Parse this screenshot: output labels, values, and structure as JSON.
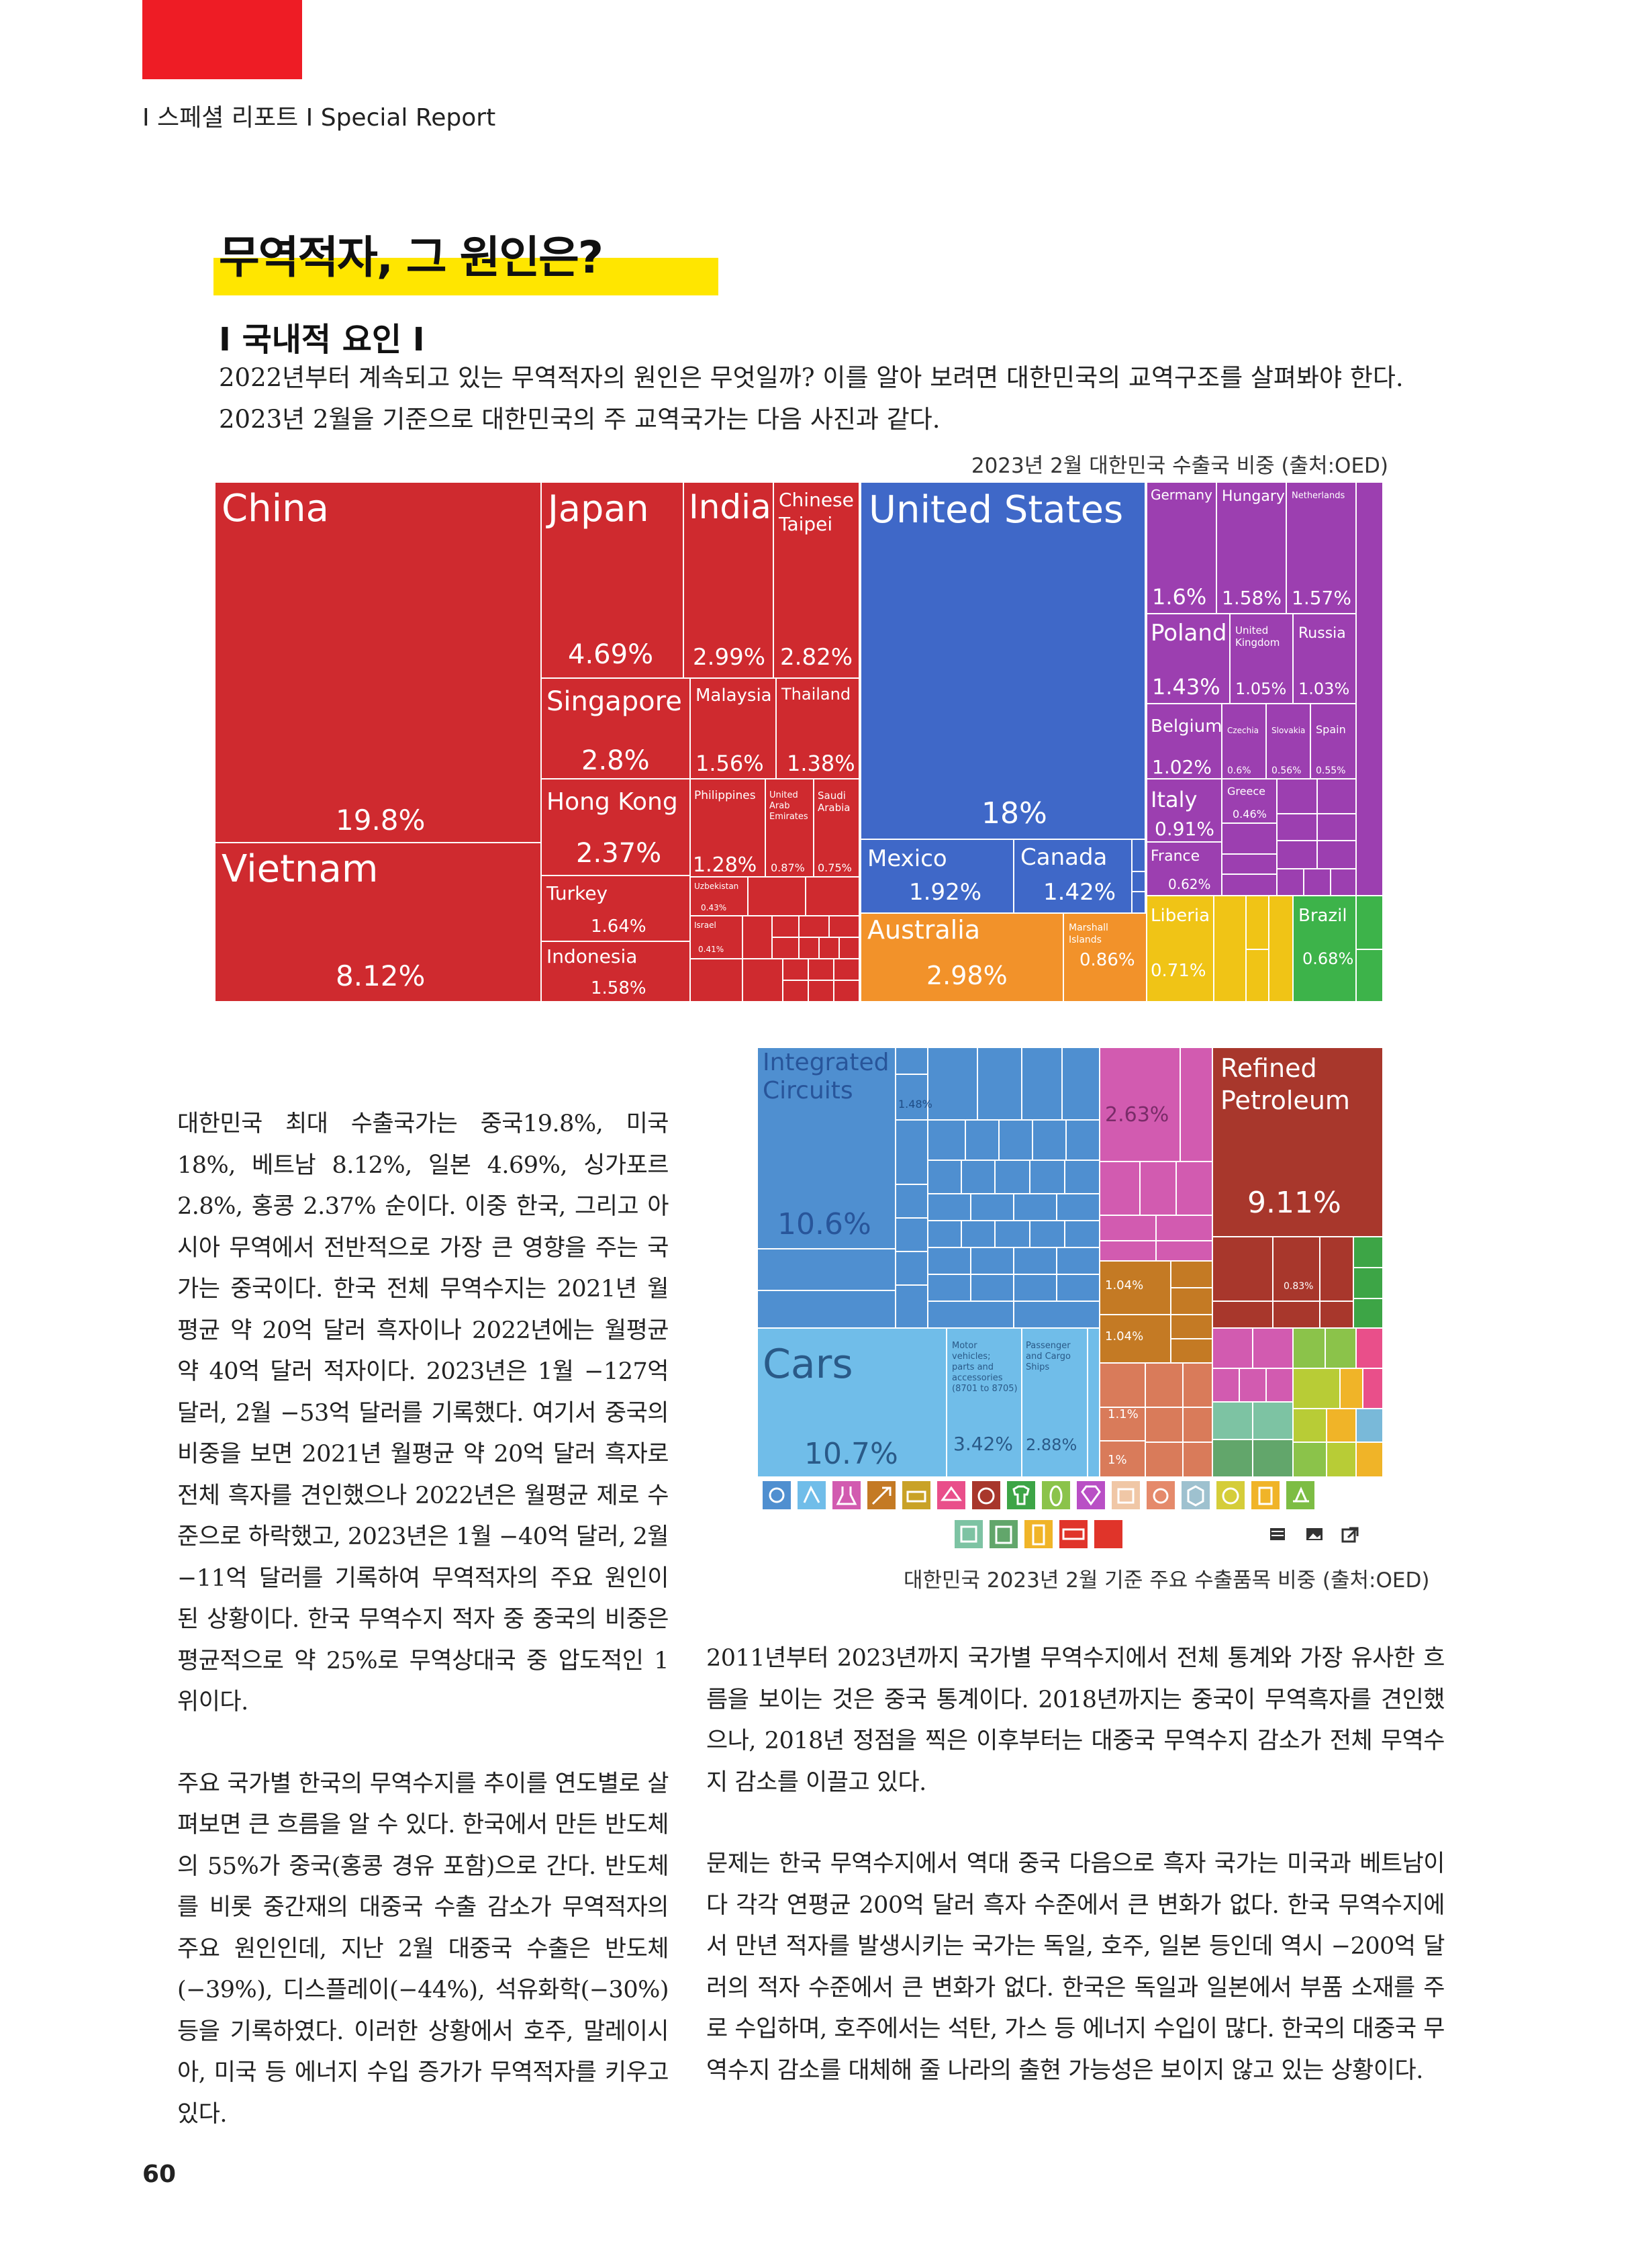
{
  "header": {
    "tag": "Ⅰ 스페셜 리포트 Ⅰ Special Report"
  },
  "title": "무역적자, 그 원인은?",
  "subhead": "Ⅰ 국내적 요인 Ⅰ",
  "intro": [
    "2022년부터 계속되고 있는 무역적자의 원인은 무엇일까? 이를 알아 보려면 대한민국의 교역구조를 살펴봐야 한다.",
    "2023년 2월을 기준으로 대한민국의 주 교역국가는 다음 사진과 같다."
  ],
  "figure1": {
    "caption": "2023년 2월 대한민국 수출국 비중 (출처:OED)",
    "chart_data": {
      "type": "treemap",
      "unit": "%",
      "tiles": [
        {
          "label": "China",
          "value": "19.8%"
        },
        {
          "label": "Vietnam",
          "value": "8.12%"
        },
        {
          "label": "Japan",
          "value": "4.69%"
        },
        {
          "label": "India",
          "value": "2.99%"
        },
        {
          "label": "Chinese Taipei",
          "value": "2.82%"
        },
        {
          "label": "Singapore",
          "value": "2.8%"
        },
        {
          "label": "Malaysia",
          "value": "1.56%"
        },
        {
          "label": "Thailand",
          "value": "1.38%"
        },
        {
          "label": "Hong Kong",
          "value": "2.37%"
        },
        {
          "label": "Philippines",
          "value": "1.28%"
        },
        {
          "label": "United Arab Emirates",
          "value": "0.87%"
        },
        {
          "label": "Saudi Arabia",
          "value": "0.75%"
        },
        {
          "label": "Turkey",
          "value": "1.64%"
        },
        {
          "label": "Uzbekistan",
          "value": "0.43%"
        },
        {
          "label": "Indonesia",
          "value": "1.58%"
        },
        {
          "label": "Israel",
          "value": "0.41%"
        },
        {
          "label": "United States",
          "value": "18%"
        },
        {
          "label": "Mexico",
          "value": "1.92%"
        },
        {
          "label": "Canada",
          "value": "1.42%"
        },
        {
          "label": "Australia",
          "value": "2.98%"
        },
        {
          "label": "Marshall Islands",
          "value": "0.86%"
        },
        {
          "label": "Germany",
          "value": "1.6%"
        },
        {
          "label": "Hungary",
          "value": "1.58%"
        },
        {
          "label": "Netherlands",
          "value": "1.57%"
        },
        {
          "label": "Poland",
          "value": "1.43%"
        },
        {
          "label": "United Kingdom",
          "value": "1.05%"
        },
        {
          "label": "Russia",
          "value": "1.03%"
        },
        {
          "label": "Belgium",
          "value": "1.02%"
        },
        {
          "label": "Czechia",
          "value": "0.6%"
        },
        {
          "label": "Slovakia",
          "value": "0.56%"
        },
        {
          "label": "Spain",
          "value": "0.55%"
        },
        {
          "label": "Italy",
          "value": "0.91%"
        },
        {
          "label": "Greece",
          "value": "0.46%"
        },
        {
          "label": "France",
          "value": "0.62%"
        },
        {
          "label": "Liberia",
          "value": "0.71%"
        },
        {
          "label": "Brazil",
          "value": "0.68%"
        }
      ]
    }
  },
  "figure2": {
    "caption": "대한민국 2023년 2월 기준 주요 수출품목 비중 (출처:OED)",
    "chart_data": {
      "type": "treemap",
      "unit": "%",
      "tiles": [
        {
          "label": "Integrated Circuits",
          "value": "10.6%"
        },
        {
          "label": "Cars",
          "value": "10.7%"
        },
        {
          "label": "Refined Petroleum",
          "value": "9.11%"
        },
        {
          "label": "Motor vehicles; parts and accessories (8701 to 8705)",
          "value": "3.42%"
        },
        {
          "label": "Passenger and Cargo Ships",
          "value": "2.88%"
        }
      ],
      "minor_values": [
        "1.48%",
        "2.63%",
        "1.04%",
        "1.04%",
        "1.1%",
        "0.83%",
        "1%"
      ]
    }
  },
  "left_column": [
    "대한민국 최대 수출국가는 중국19.8%, 미국 18%, 베트남 8.12%, 일본 4.69%, 싱가포르 2.8%, 홍콩 2.37% 순이다. 이중 한국, 그리고 아시아 무역에서 전반적으로 가장 큰 영향을 주는 국가는 중국이다. 한국 전체 무역수지는 2021년 월평균 약 20억 달러 흑자이나 2022년에는 월평균 약 40억 달러 적자이다. 2023년은 1월 −127억 달러, 2월 −53억 달러를 기록했다. 여기서 중국의 비중을 보면 2021년 월평균 약 20억 달러 흑자로 전체 흑자를 견인했으나 2022년은 월평균 제로 수준으로 하락했고, 2023년은 1월 −40억 달러, 2월 −11억 달러를 기록하여 무역적자의 주요 원인이 된 상황이다. 한국 무역수지 적자 중 중국의 비중은 평균적으로 약 25%로 무역상대국 중 압도적인 1위이다.",
    "주요 국가별 한국의 무역수지를 추이를 연도별로 살펴보면 큰 흐름을 알 수 있다. 한국에서 만든 반도체의 55%가 중국(홍콩 경유 포함)으로 간다. 반도체를 비롯 중간재의 대중국 수출 감소가 무역적자의 주요 원인인데, 지난 2월 대중국 수출은 반도체(−39%), 디스플레이(−44%), 석유화학(−30%) 등을 기록하였다. 이러한 상황에서 호주, 말레이시아, 미국 등 에너지 수입 증가가 무역적자를 키우고 있다."
  ],
  "right_column": [
    "2011년부터 2023년까지 국가별 무역수지에서 전체 통계와 가장 유사한 흐름을 보이는 것은 중국 통계이다. 2018년까지는 중국이 무역흑자를 견인했으나, 2018년 정점을 찍은 이후부터는 대중국 무역수지 감소가 전체 무역수지 감소를 이끌고 있다.",
    "문제는 한국 무역수지에서 역대 중국 다음으로 흑자 국가는 미국과 베트남이다 각각 연평균 200억 달러 흑자 수준에서 큰 변화가 없다. 한국 무역수지에서 만년 적자를 발생시키는 국가는 독일, 호주, 일본 등인데 역시 −200억 달러의 적자 수준에서 큰 변화가 없다. 한국은 독일과 일본에서 부품 소재를 주로 수입하며, 호주에서는 석탄, 가스 등 에너지 수입이 많다. 한국의 대중국 무역수지 감소를 대체해 줄 나라의 출현 가능성은 보이지 않고 있는 상황이다."
  ],
  "page_number": "60",
  "colors": {
    "accent_red": "#ee1c25",
    "highlight_yellow": "#ffe600",
    "asia_red": "#cf2a2f",
    "americas_blue": "#3f68c8",
    "europe_purple": "#9c3fb0",
    "oceania_orange": "#f2922a",
    "africa_yellow": "#f0c416",
    "south_america_green": "#3db34a",
    "electronics_blue": "#4f8fd0",
    "vehicles_cyan": "#70bde9",
    "mineral_brown": "#a8372c",
    "metals_orange": "#c47a24",
    "chemicals_pink": "#d25bb0"
  },
  "icons": [
    "electronics-icon",
    "vehicles-icon",
    "chemicals-icon",
    "machinery-icon",
    "metals-icon",
    "plastics-icon",
    "instruments-icon",
    "textiles-icon",
    "vegetables-icon",
    "jewelry-icon",
    "foodstuffs-icon",
    "animals-icon",
    "minerals-icon",
    "stone-icon",
    "paper-icon",
    "wood-icon",
    "footwear-icon",
    "weapons-icon",
    "misc-icon",
    "table-icon",
    "image-icon",
    "share-icon"
  ]
}
